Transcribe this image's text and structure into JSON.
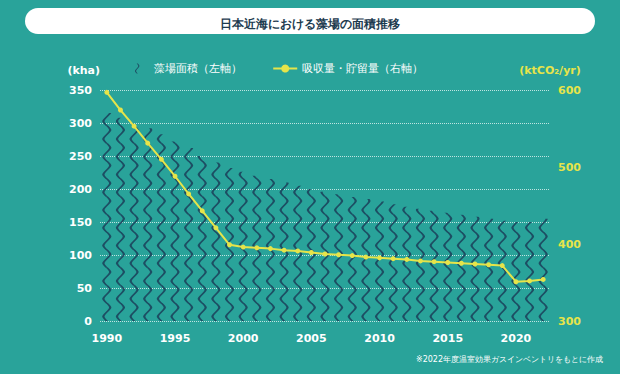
{
  "chart_data": {
    "type": "bar",
    "title": "日本近海における藻場の面積推移",
    "footnote": "※2022年度温室効果ガスインベントリをもとに作成",
    "ylabel": "(kha)",
    "y2label": "(ktCO₂/yr)",
    "categories": [
      "1990",
      null,
      null,
      null,
      null,
      "1995",
      null,
      null,
      null,
      null,
      "2000",
      null,
      null,
      null,
      null,
      "2005",
      null,
      null,
      null,
      null,
      "2010",
      null,
      null,
      null,
      null,
      "2015",
      null,
      null,
      null,
      null,
      "2020",
      null,
      null
    ],
    "series": [
      {
        "name": "藻場面積（左軸）",
        "type": "bar",
        "color": "#1d4e63",
        "values": [
          315,
          308,
          300,
          292,
          283,
          272,
          262,
          250,
          240,
          232,
          226,
          220,
          215,
          210,
          205,
          200,
          196,
          192,
          188,
          185,
          181,
          177,
          173,
          170,
          167,
          164,
          161,
          158,
          155,
          152,
          150,
          150,
          155
        ]
      },
      {
        "name": "吸収量・貯留量（右軸）",
        "type": "line",
        "axis": "y2",
        "color": "#e6e44a",
        "marker": "circle",
        "values": [
          597,
          574,
          553,
          531,
          510,
          488,
          465,
          443,
          421,
          399,
          396,
          395,
          394,
          392,
          391,
          389,
          387,
          386,
          385,
          383,
          382,
          381,
          380,
          378,
          377,
          376,
          375,
          374,
          373,
          372,
          351,
          352,
          354
        ]
      }
    ],
    "ylim": [
      0,
      350
    ],
    "yticks": [
      0,
      50,
      100,
      150,
      200,
      250,
      300,
      350
    ],
    "y2lim": [
      300,
      600
    ],
    "y2ticks": [
      300,
      400,
      500,
      600
    ],
    "grid": true,
    "legend": "top"
  }
}
